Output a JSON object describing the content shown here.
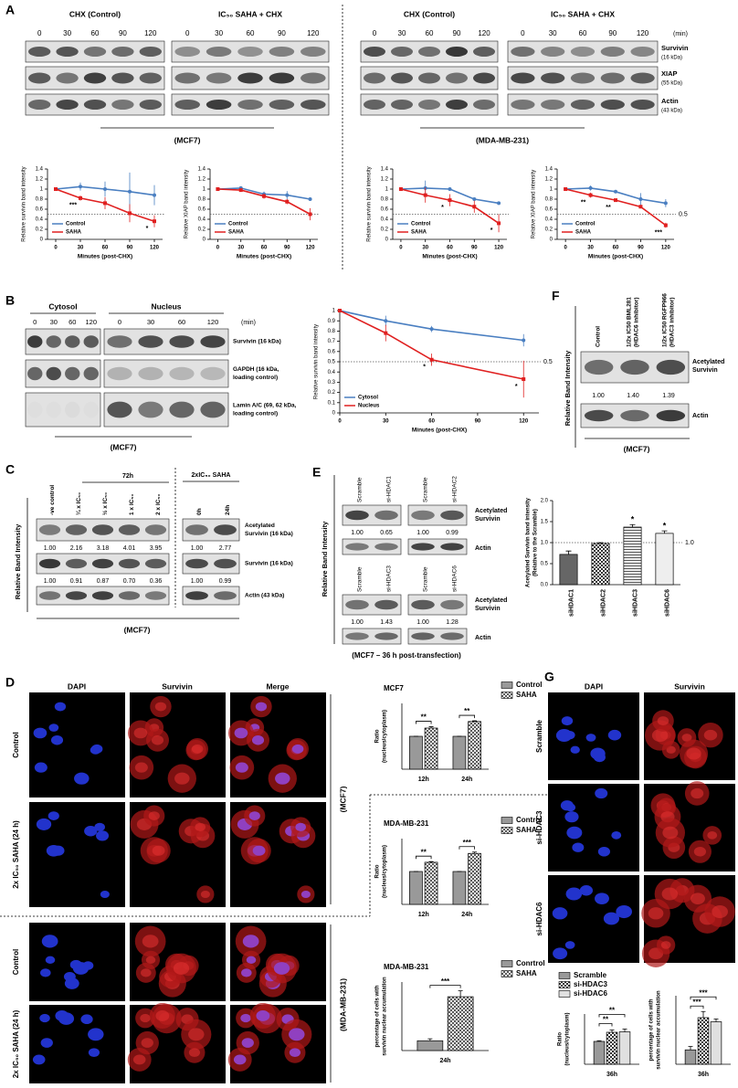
{
  "panels": {
    "A": {
      "label": "A",
      "blots": [
        {
          "header": "CHX (Control)",
          "times": [
            "0",
            "30",
            "60",
            "90",
            "120"
          ]
        },
        {
          "header": "IC₅₀ SAHA + CHX",
          "times": [
            "0",
            "30",
            "60",
            "90",
            "120"
          ]
        },
        {
          "header": "CHX (Control)",
          "times": [
            "0",
            "30",
            "60",
            "90",
            "120"
          ]
        },
        {
          "header": "IC₅₀ SAHA + CHX",
          "times": [
            "0",
            "30",
            "60",
            "90",
            "120"
          ]
        }
      ],
      "unit": "(min)",
      "proteins": [
        [
          "Survivin",
          "(16 kDa)"
        ],
        [
          "XIAP",
          "(55 kDa)"
        ],
        [
          "Actin",
          "(43 kDa)"
        ]
      ],
      "cells": [
        "(MCF7)",
        "(MDA-MB-231)"
      ]
    },
    "B": {
      "label": "B",
      "headers": [
        "Cytosol",
        "Nucleus"
      ],
      "times": [
        "0",
        "30",
        "60",
        "120"
      ],
      "unit": "(min)",
      "proteins": [
        [
          "Survivin (16 kDa)"
        ],
        [
          "GAPDH (16 kDa,",
          "loading control)"
        ],
        [
          "Lamin A/C (69, 62 kDa,",
          "loading control)"
        ]
      ],
      "cell": "(MCF7)"
    },
    "C": {
      "label": "C",
      "ylabel": "Relative Band Intensity",
      "period": "72h",
      "lanes": [
        "-ve control",
        "¼ x IC₅₀",
        "½ x IC₅₀",
        "1 x IC₅₀",
        "2 x IC₅₀"
      ],
      "acetylated": [
        "1.00",
        "2.16",
        "3.18",
        "4.01",
        "3.95"
      ],
      "survivin": [
        "1.00",
        "0.91",
        "0.87",
        "0.70",
        "0.36"
      ],
      "treatment": "2xIC₅₀ SAHA",
      "time_lanes": [
        "0h",
        "24h"
      ],
      "time_acetylated": [
        "1.00",
        "2.77"
      ],
      "time_survivin": [
        "1.00",
        "0.99"
      ],
      "proteins": [
        [
          "Acetylated",
          "Survivin (16 kDa)"
        ],
        [
          "Survivin (16 kDa)"
        ],
        [
          "Actin (43 kDa)"
        ]
      ],
      "cell": "(MCF7)"
    },
    "D": {
      "label": "D",
      "columns": [
        "DAPI",
        "Survivin",
        "Merge"
      ],
      "rows": [
        "Control",
        "2x IC₅₀ SAHA (24 h)",
        "Control",
        "2x IC₅₀ SAHA (24 h)"
      ],
      "cells": [
        "(MCF7)",
        "(MDA-MB-231)"
      ]
    },
    "E": {
      "label": "E",
      "ylabel": "Relative Band Intensity",
      "pairs": [
        {
          "lanes": [
            "Scramble",
            "si-HDAC1"
          ],
          "values": [
            "1.00",
            "0.65"
          ]
        },
        {
          "lanes": [
            "Scramble",
            "si-HDAC2"
          ],
          "values": [
            "1.00",
            "0.99"
          ]
        },
        {
          "lanes": [
            "Scramble",
            "si-HDAC3"
          ],
          "values": [
            "1.00",
            "1.43"
          ]
        },
        {
          "lanes": [
            "Scramble",
            "si-HDAC6"
          ],
          "values": [
            "1.00",
            "1.28"
          ]
        }
      ],
      "proteins": [
        [
          "Acetylated",
          "Survivin"
        ],
        [
          "Actin"
        ]
      ],
      "caption": "(MCF7 – 36 h post-transfection)"
    },
    "F": {
      "label": "F",
      "ylabel": "Relative Band Intensity",
      "lanes": [
        [
          "Control"
        ],
        [
          "1/2x IC50 BML281",
          "(HDAC6 inhibitor)"
        ],
        [
          "1/2x IC50 RGFP966",
          "(HDAC3 inhibitor)"
        ]
      ],
      "values": [
        "1.00",
        "1.40",
        "1.39"
      ],
      "proteins": [
        [
          "Acetylated",
          "Survivin"
        ],
        [
          "Actin"
        ]
      ],
      "cell": "(MCF7)"
    },
    "G": {
      "label": "G",
      "columns": [
        "DAPI",
        "Survivin"
      ],
      "rows": [
        "Scramble",
        "si-HDAC3",
        "si-HDAC6"
      ]
    }
  },
  "chart_data": [
    {
      "type": "line",
      "ylabel": "Relative survivin band intensity",
      "xlabel": "Minutes (post-CHX)",
      "x": [
        0,
        30,
        60,
        90,
        120
      ],
      "xlim": [
        -10,
        130
      ],
      "xticks": [
        0,
        30,
        60,
        90,
        120
      ],
      "ylim": [
        0,
        1.4
      ],
      "yticks": [
        0,
        0.2,
        0.4,
        0.6,
        0.8,
        1,
        1.2,
        1.4
      ],
      "refline": 0.5,
      "legend": "lower left",
      "series": [
        {
          "name": "Control",
          "color": "#4a7fc1",
          "values": [
            1,
            1.05,
            1,
            0.95,
            0.88
          ],
          "errors": [
            0,
            0.08,
            0.15,
            0.38,
            0.2
          ]
        },
        {
          "name": "SAHA",
          "color": "#e02020",
          "values": [
            1,
            0.82,
            0.72,
            0.52,
            0.36
          ],
          "errors": [
            0,
            0.05,
            0.12,
            0.18,
            0.12
          ],
          "significance": [
            null,
            "***",
            null,
            null,
            "*"
          ]
        }
      ]
    },
    {
      "type": "line",
      "ylabel": "Relative XIAP band intensity",
      "xlabel": "Minutes (post-CHX)",
      "x": [
        0,
        30,
        60,
        90,
        120
      ],
      "xlim": [
        -10,
        130
      ],
      "xticks": [
        0,
        30,
        60,
        90,
        120
      ],
      "ylim": [
        0,
        1.4
      ],
      "yticks": [
        0,
        0.2,
        0.4,
        0.6,
        0.8,
        1,
        1.2,
        1.4
      ],
      "refline": 0.5,
      "legend": "lower left",
      "series": [
        {
          "name": "Control",
          "color": "#4a7fc1",
          "values": [
            1,
            1.02,
            0.9,
            0.88,
            0.8
          ],
          "errors": [
            0,
            0.03,
            0.05,
            0.08,
            0.03
          ]
        },
        {
          "name": "SAHA",
          "color": "#e02020",
          "values": [
            1,
            0.98,
            0.86,
            0.75,
            0.5
          ],
          "errors": [
            0,
            0.03,
            0.05,
            0.05,
            0.12
          ]
        }
      ]
    },
    {
      "type": "line",
      "ylabel": "Relative survivin band intensity",
      "xlabel": "Minutes (post-CHX)",
      "x": [
        0,
        30,
        60,
        90,
        120
      ],
      "xlim": [
        -10,
        130
      ],
      "xticks": [
        0,
        30,
        60,
        90,
        120
      ],
      "ylim": [
        0,
        1.4
      ],
      "yticks": [
        0,
        0.2,
        0.4,
        0.6,
        0.8,
        1,
        1.2,
        1.4
      ],
      "refline": 0.5,
      "legend": "lower left",
      "series": [
        {
          "name": "Control",
          "color": "#4a7fc1",
          "values": [
            1,
            1.02,
            1,
            0.8,
            0.72
          ],
          "errors": [
            0,
            0.15,
            0.02,
            0.02,
            0.02
          ]
        },
        {
          "name": "SAHA",
          "color": "#e02020",
          "values": [
            1,
            0.88,
            0.78,
            0.65,
            0.32
          ],
          "errors": [
            0,
            0.15,
            0.12,
            0.12,
            0.18
          ],
          "significance": [
            null,
            null,
            "*",
            null,
            "*"
          ]
        }
      ]
    },
    {
      "type": "line",
      "ylabel": "Relative XIAP band intensity",
      "xlabel": "Minutes (post-CHX)",
      "x": [
        0,
        30,
        60,
        90,
        120
      ],
      "xlim": [
        -10,
        130
      ],
      "xticks": [
        0,
        30,
        60,
        90,
        120
      ],
      "ylim": [
        0,
        1.4
      ],
      "yticks": [
        0,
        0.2,
        0.4,
        0.6,
        0.8,
        1,
        1.2,
        1.4
      ],
      "refline": {
        "value": 0.5,
        "label": "0.5"
      },
      "legend": "lower left",
      "series": [
        {
          "name": "Control",
          "color": "#4a7fc1",
          "values": [
            1,
            1.02,
            0.95,
            0.8,
            0.72
          ],
          "errors": [
            0,
            0.05,
            0.03,
            0.12,
            0.08
          ]
        },
        {
          "name": "SAHA",
          "color": "#e02020",
          "values": [
            1,
            0.88,
            0.78,
            0.65,
            0.28
          ],
          "errors": [
            0,
            0.05,
            0.03,
            0.03,
            0.05
          ],
          "significance": [
            null,
            "**",
            "**",
            null,
            "***"
          ]
        }
      ]
    },
    {
      "type": "line",
      "ylabel": "Relative survivin band intensity",
      "xlabel": "Minutes (post-CHX)",
      "x": [
        0,
        30,
        60,
        120
      ],
      "xlim": [
        0,
        130
      ],
      "xticks": [
        0,
        30,
        60,
        90,
        120
      ],
      "ylim": [
        0,
        1
      ],
      "yticks": [
        0,
        0.1,
        0.2,
        0.3,
        0.4,
        0.5,
        0.6,
        0.7,
        0.8,
        0.9,
        1
      ],
      "refline": {
        "value": 0.5,
        "label": "0.5"
      },
      "legend": "lower left",
      "series": [
        {
          "name": "Cytosol",
          "color": "#4a7fc1",
          "values": [
            1,
            0.9,
            0.82,
            0.71
          ],
          "errors": [
            0,
            0.05,
            0.03,
            0.06
          ]
        },
        {
          "name": "Nucleus",
          "color": "#e02020",
          "values": [
            1,
            0.78,
            0.52,
            0.33
          ],
          "errors": [
            0,
            0.08,
            0.06,
            0.18
          ],
          "significance": [
            null,
            null,
            "*",
            "*"
          ]
        }
      ]
    },
    {
      "type": "bar",
      "ylabel": "Acetylated Survivin band intensity",
      "ylabel2": "(Relative to the Scramble)",
      "categories": [
        "siHDAC1",
        "siHDAC2",
        "siHDAC3",
        "siHDAC6"
      ],
      "values": [
        0.72,
        0.98,
        1.37,
        1.22
      ],
      "errors": [
        0.08,
        0.02,
        0.06,
        0.06
      ],
      "colors": [
        "#666666",
        "#dddddd",
        "#cccccc",
        "#eeeeee"
      ],
      "patterns": [
        null,
        "checker",
        "stripes",
        null
      ],
      "ylim": [
        0,
        2
      ],
      "yticks": [
        {
          "value": 0,
          "label": "0.0"
        },
        {
          "value": 0.5,
          "label": "0.5"
        },
        {
          "value": 1,
          "label": "1.0"
        },
        {
          "value": 1.5,
          "label": "1.5"
        },
        {
          "value": 2,
          "label": "2.0"
        }
      ],
      "refline": {
        "value": 1,
        "label": "1.0"
      },
      "significance": [
        null,
        null,
        "*",
        "*"
      ]
    },
    {
      "type": "bar",
      "title": "MCF7",
      "ylabel": "Ratio",
      "ylabel2": "(nucleus/cytoplasm)",
      "categories": [
        "12h",
        "24h"
      ],
      "ylim": [
        0,
        2
      ],
      "legend": "outside right",
      "series": [
        {
          "name": "Control",
          "color": "#999999",
          "values": [
            1,
            1
          ],
          "errors": [
            0,
            0
          ]
        },
        {
          "name": "SAHA",
          "color": "#ffffff",
          "pattern": "crosshatch",
          "values": [
            1.25,
            1.45
          ],
          "errors": [
            0.04,
            0.02
          ],
          "significance": [
            "**",
            "**"
          ]
        }
      ]
    },
    {
      "type": "bar",
      "title": "MDA-MB-231",
      "ylabel": "Ratio",
      "ylabel2": "(nucleus/cytoplasm)",
      "categories": [
        "12h",
        "24h"
      ],
      "ylim": [
        0,
        2
      ],
      "legend": "outside right",
      "series": [
        {
          "name": "Control",
          "color": "#999999",
          "values": [
            1,
            1
          ],
          "errors": [
            0,
            0
          ]
        },
        {
          "name": "SAHA",
          "color": "#ffffff",
          "pattern": "crosshatch",
          "values": [
            1.28,
            1.55
          ],
          "errors": [
            0.02,
            0.04
          ],
          "significance": [
            "**",
            "***"
          ]
        }
      ]
    },
    {
      "type": "bar",
      "title": "MDA-MB-231",
      "ylabel": "percentage of cells with",
      "ylabel2": "survivin nuclear accumulation",
      "categories": [
        "24h"
      ],
      "ylim": [
        0,
        70
      ],
      "legend": "outside right",
      "series": [
        {
          "name": "Conrtrol",
          "color": "#999999",
          "values": [
            10
          ],
          "errors": [
            2
          ]
        },
        {
          "name": "SAHA",
          "color": "#ffffff",
          "pattern": "crosshatch",
          "values": [
            55
          ],
          "errors": [
            6
          ],
          "significance": [
            "***"
          ]
        }
      ]
    },
    {
      "type": "bar",
      "ylabel": "Ratio",
      "ylabel2": "(nucleus/cytoplasm)",
      "categories": [
        "36h"
      ],
      "ylim": [
        0,
        2.2
      ],
      "legend": "above",
      "series": [
        {
          "name": "Scramble",
          "color": "#999999",
          "values": [
            1
          ],
          "errors": [
            0.03
          ]
        },
        {
          "name": "si-HDAC3",
          "color": "#ffffff",
          "pattern": "checker",
          "values": [
            1.4
          ],
          "errors": [
            0.1
          ],
          "significance": [
            "**"
          ]
        },
        {
          "name": "si-HDAC6",
          "color": "#e0e0e0",
          "values": [
            1.42
          ],
          "errors": [
            0.12
          ],
          "significance": [
            "**"
          ]
        }
      ]
    },
    {
      "type": "bar",
      "ylabel": "percentage of cells with",
      "ylabel2": "survivin nuclear accumulation",
      "categories": [
        "36h"
      ],
      "ylim": [
        0,
        100
      ],
      "series": [
        {
          "name": "Scramble",
          "color": "#999999",
          "values": [
            21
          ],
          "errors": [
            5
          ]
        },
        {
          "name": "si-HDAC3",
          "color": "#ffffff",
          "pattern": "checker",
          "values": [
            68
          ],
          "errors": [
            9
          ],
          "significance": [
            "***"
          ]
        },
        {
          "name": "si-HDAC6",
          "color": "#e0e0e0",
          "values": [
            62
          ],
          "errors": [
            4
          ],
          "significance": [
            "***"
          ]
        }
      ]
    }
  ]
}
